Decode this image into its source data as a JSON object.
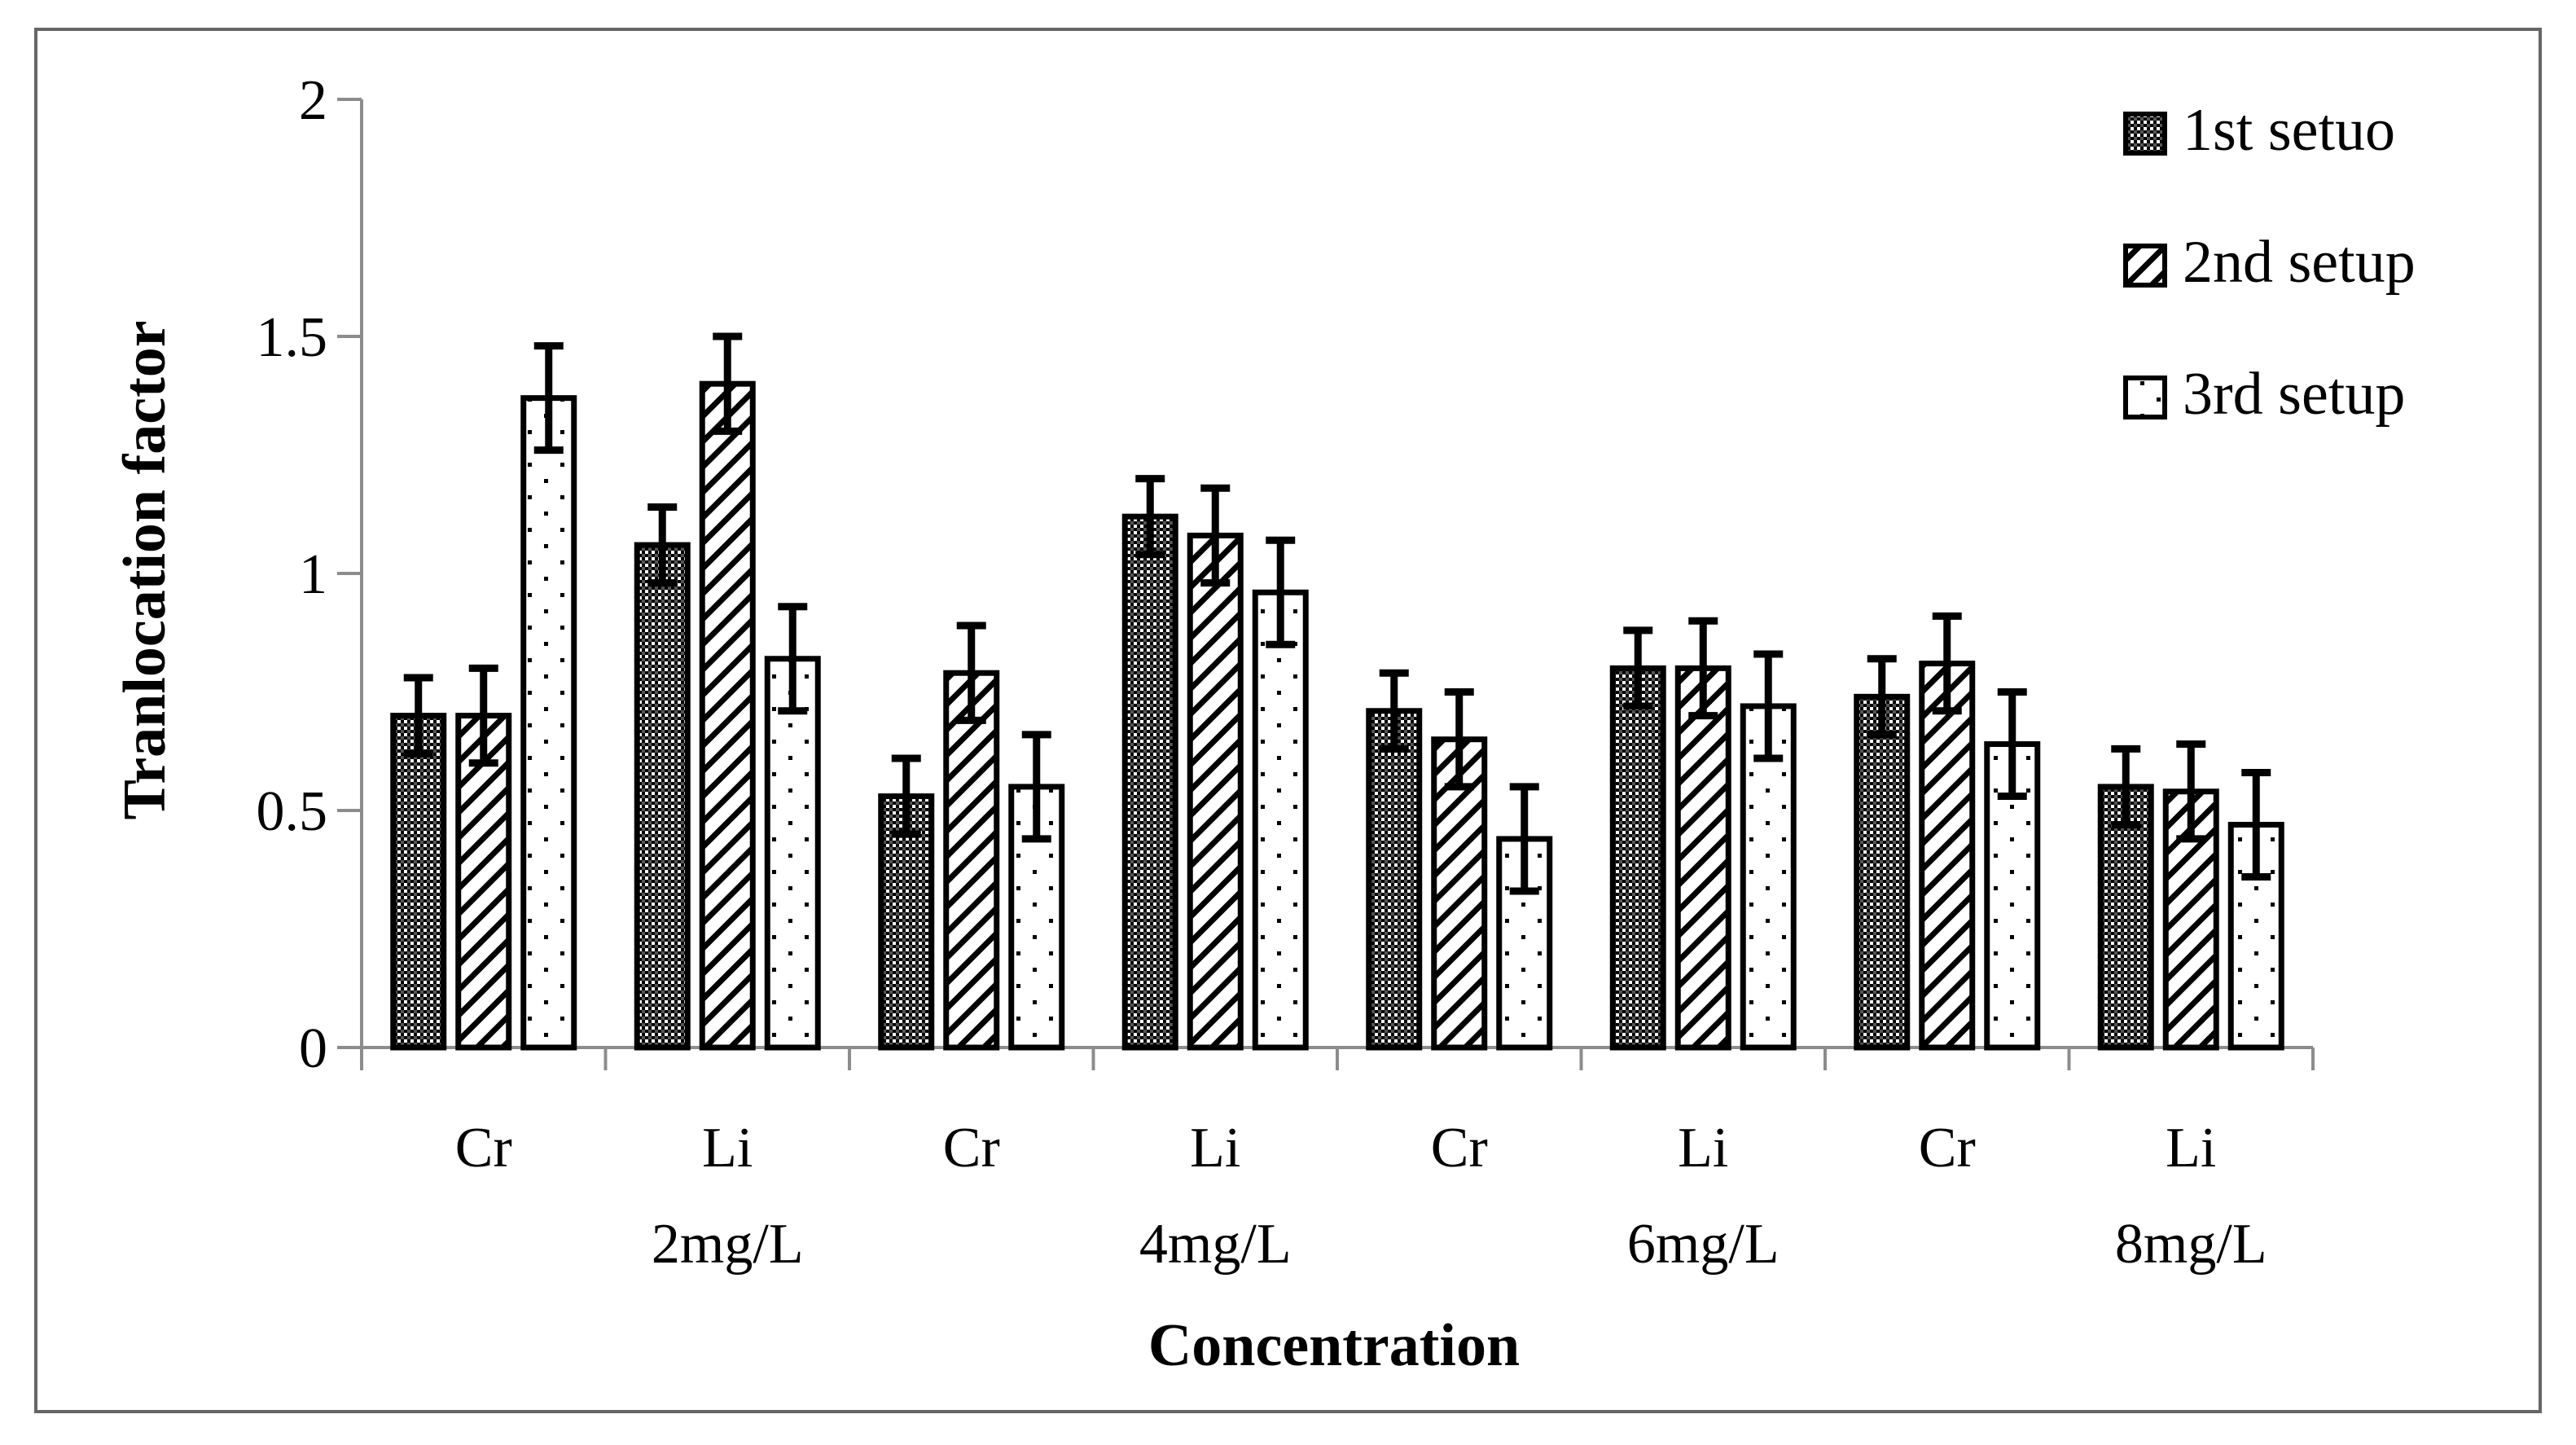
{
  "chart_data": {
    "type": "bar",
    "title": "",
    "xlabel": "Concentration",
    "ylabel": "Tranlocation factor",
    "ylim": [
      0,
      2
    ],
    "yticks": [
      0,
      0.5,
      1,
      1.5,
      2
    ],
    "ytick_labels": [
      "0",
      "0.5",
      "1",
      "1.5",
      "2"
    ],
    "grid": false,
    "legend_position": "top-right",
    "categories": [
      [
        "Cr"
      ],
      [
        "Li",
        "2mg/L"
      ],
      [
        "Cr"
      ],
      [
        "Li",
        "4mg/L"
      ],
      [
        "Cr"
      ],
      [
        "Li",
        "6mg/L"
      ],
      [
        "Cr"
      ],
      [
        "Li",
        "8mg/L"
      ]
    ],
    "series": [
      {
        "name": "1st setuo",
        "pattern": "checker",
        "values": [
          0.7,
          1.06,
          0.53,
          1.12,
          0.71,
          0.8,
          0.74,
          0.55
        ],
        "errors": [
          0.08,
          0.08,
          0.08,
          0.08,
          0.08,
          0.08,
          0.08,
          0.08
        ]
      },
      {
        "name": "2nd setup",
        "pattern": "diagonal",
        "values": [
          0.7,
          1.4,
          0.79,
          1.08,
          0.65,
          0.8,
          0.81,
          0.54
        ],
        "errors": [
          0.1,
          0.1,
          0.1,
          0.1,
          0.1,
          0.1,
          0.1,
          0.1
        ]
      },
      {
        "name": "3rd setup",
        "pattern": "dots",
        "values": [
          1.37,
          0.82,
          0.55,
          0.96,
          0.44,
          0.72,
          0.64,
          0.47
        ],
        "errors": [
          0.11,
          0.11,
          0.11,
          0.11,
          0.11,
          0.11,
          0.11,
          0.11
        ]
      }
    ]
  }
}
